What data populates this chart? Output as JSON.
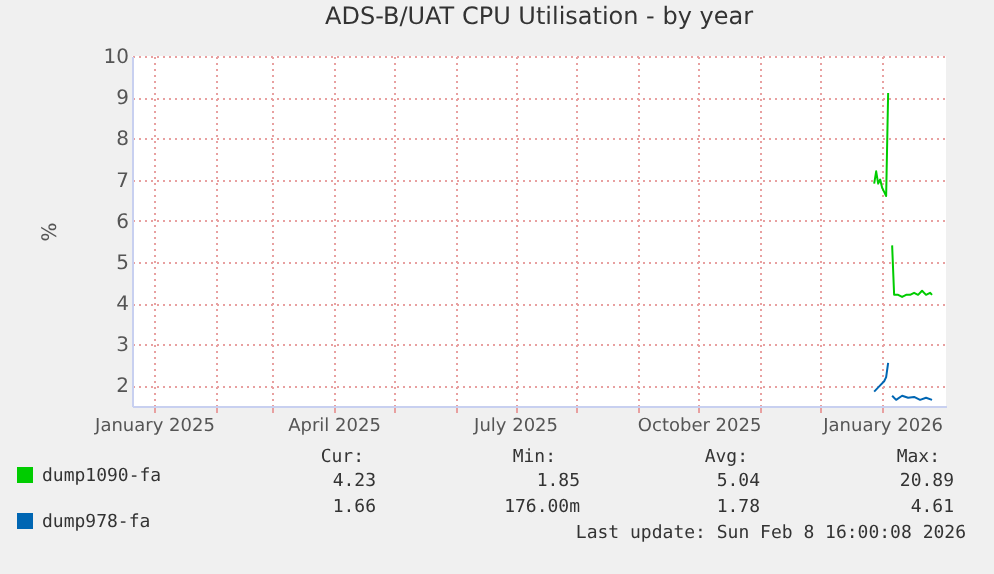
{
  "chart_data": {
    "type": "line",
    "title": "ADS-B/UAT CPU Utilisation - by year",
    "ylabel": "%",
    "series": [
      {
        "name": "dump1090-fa",
        "color": "#00cc00",
        "x": [
          "2025-12-28",
          "2025-12-29",
          "2025-12-30",
          "2025-12-31",
          "2026-01-01",
          "2026-01-02",
          "2026-01-03",
          "2026-01-04",
          "2026-01-05",
          "2026-01-06",
          "2026-01-07",
          "2026-01-09",
          "2026-01-11",
          "2026-01-13",
          "2026-01-15",
          "2026-01-17",
          "2026-01-19",
          "2026-01-21",
          "2026-01-23",
          "2026-01-25",
          "2026-01-26"
        ],
        "values": [
          6.9,
          7.2,
          6.9,
          7.0,
          6.8,
          6.7,
          6.6,
          9.1,
          null,
          5.4,
          4.2,
          4.2,
          4.15,
          4.2,
          4.2,
          4.25,
          4.2,
          4.3,
          4.2,
          4.25,
          4.2
        ]
      },
      {
        "name": "dump978-fa",
        "color": "#0066b3",
        "x": [
          "2025-12-28",
          "2025-12-31",
          "2026-01-02",
          "2026-01-03",
          "2026-01-04",
          "2026-01-05",
          "2026-01-06",
          "2026-01-08",
          "2026-01-11",
          "2026-01-14",
          "2026-01-17",
          "2026-01-20",
          "2026-01-23",
          "2026-01-26"
        ],
        "values": [
          1.85,
          2.0,
          2.1,
          2.2,
          2.55,
          null,
          1.75,
          1.65,
          1.75,
          1.7,
          1.72,
          1.65,
          1.7,
          1.65
        ]
      }
    ],
    "xlim": [
      "2024-12-21",
      "2026-02-02"
    ],
    "xticks": [
      {
        "value": "2025-01-01",
        "label": "January 2025"
      },
      {
        "value": "2025-02-01",
        "label": null
      },
      {
        "value": "2025-03-01",
        "label": null
      },
      {
        "value": "2025-04-01",
        "label": "April 2025"
      },
      {
        "value": "2025-05-01",
        "label": null
      },
      {
        "value": "2025-06-01",
        "label": null
      },
      {
        "value": "2025-07-01",
        "label": "July 2025"
      },
      {
        "value": "2025-08-01",
        "label": null
      },
      {
        "value": "2025-09-01",
        "label": null
      },
      {
        "value": "2025-10-01",
        "label": "October 2025"
      },
      {
        "value": "2025-11-01",
        "label": null
      },
      {
        "value": "2025-12-01",
        "label": null
      },
      {
        "value": "2026-01-01",
        "label": "January 2026"
      }
    ],
    "ylim": [
      1.5,
      10
    ],
    "yticks": [
      2,
      3,
      4,
      5,
      6,
      7,
      8,
      9,
      10
    ],
    "grid": true,
    "legend": "bottom left",
    "marker": "none",
    "line_style": "solid",
    "annotations": [
      "Cur:",
      "Min:",
      "Avg:",
      "Max:",
      "4.23",
      "1.85",
      "5.04",
      "20.89",
      "1.66",
      "176.00m",
      "1.78",
      "4.61",
      "Last update: Sun Feb  8 16:00:08 2026"
    ]
  }
}
